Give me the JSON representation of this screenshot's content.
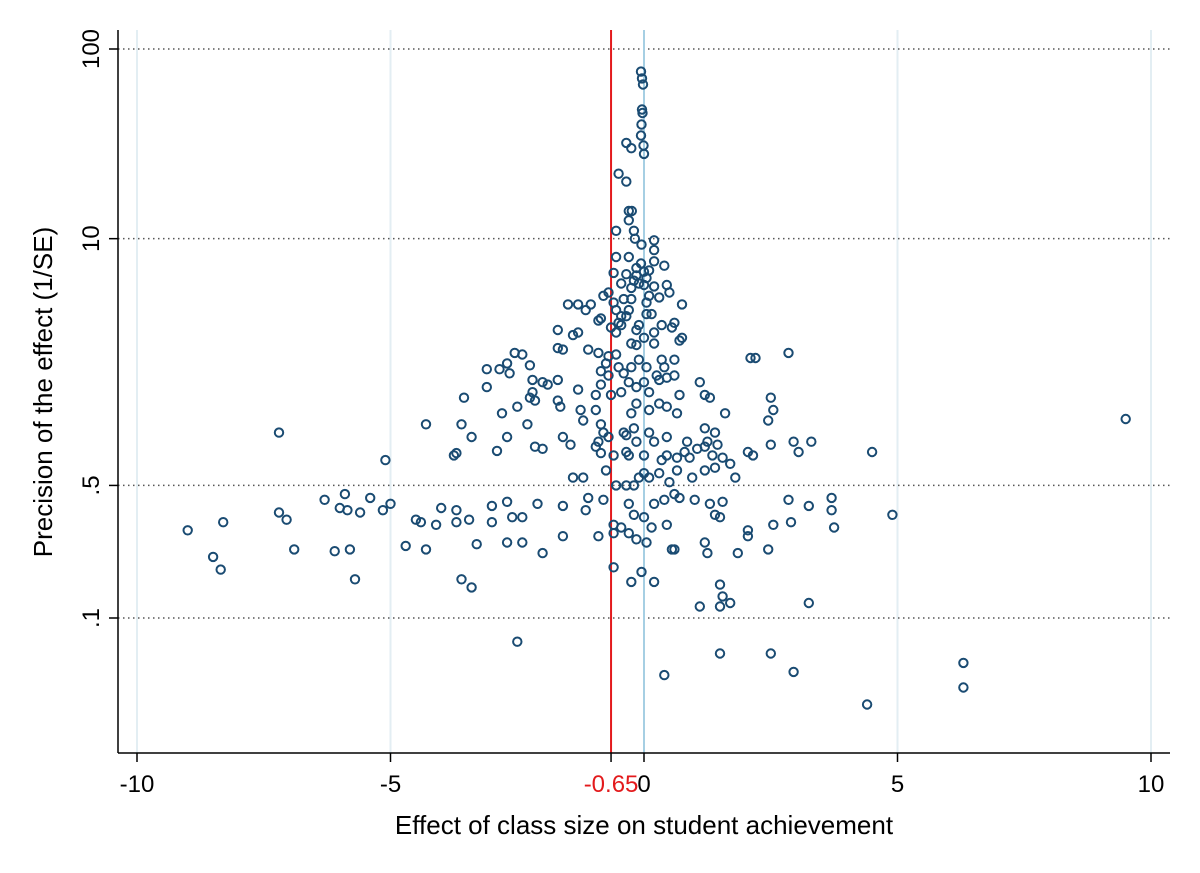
{
  "chart_data": {
    "type": "scatter",
    "xlabel": "Effect of class size on student achievement",
    "ylabel": "Precision of the effect (1/SE)",
    "xlim": [
      -10,
      10
    ],
    "x_ticks": [
      -10,
      -5,
      0,
      5,
      10
    ],
    "y_scale": "log",
    "ylim": [
      0.032,
      100
    ],
    "y_ticks": [
      {
        "value": 0.1,
        "label": ".1"
      },
      {
        "value": 0.5,
        "label": ".5"
      },
      {
        "value": 10,
        "label": "10"
      },
      {
        "value": 100,
        "label": "100"
      }
    ],
    "grid": {
      "horizontal": "dotted",
      "vertical": "light-blue"
    },
    "reference_lines": [
      {
        "x": -0.65,
        "label": "-0.65",
        "color": "#e31a1c"
      },
      {
        "x": 0,
        "color": "#a6cfe3"
      }
    ],
    "marker_color": "#1a4b72",
    "points": [
      [
        -0.06,
        76
      ],
      [
        -0.04,
        70
      ],
      [
        -0.02,
        65
      ],
      [
        -0.04,
        48
      ],
      [
        -0.03,
        46
      ],
      [
        -0.05,
        40
      ],
      [
        -0.06,
        35
      ],
      [
        -0.35,
        32
      ],
      [
        -0.25,
        30
      ],
      [
        -0.01,
        31
      ],
      [
        0.0,
        28
      ],
      [
        -0.5,
        22
      ],
      [
        -0.35,
        20
      ],
      [
        -0.3,
        14
      ],
      [
        -0.24,
        14
      ],
      [
        -0.3,
        12.5
      ],
      [
        -0.55,
        11
      ],
      [
        -0.2,
        11
      ],
      [
        -0.18,
        10
      ],
      [
        0.2,
        9.8
      ],
      [
        -0.05,
        9.3
      ],
      [
        0.2,
        8.7
      ],
      [
        -0.55,
        8
      ],
      [
        -0.3,
        8
      ],
      [
        0.2,
        7.6
      ],
      [
        0.4,
        7.2
      ],
      [
        -0.06,
        7.4
      ],
      [
        -0.15,
        7.0
      ],
      [
        0.0,
        6.7
      ],
      [
        0.1,
        6.8
      ],
      [
        -0.6,
        6.6
      ],
      [
        -0.35,
        6.5
      ],
      [
        -0.15,
        6.4
      ],
      [
        0.05,
        6.2
      ],
      [
        -0.2,
        6.0
      ],
      [
        -0.45,
        5.8
      ],
      [
        0.45,
        5.7
      ],
      [
        -0.1,
        5.8
      ],
      [
        0.0,
        5.7
      ],
      [
        0.2,
        5.6
      ],
      [
        -0.25,
        5.5
      ],
      [
        0.5,
        5.2
      ],
      [
        -0.7,
        5.2
      ],
      [
        -0.8,
        5.0
      ],
      [
        0.1,
        5.0
      ],
      [
        0.3,
        4.9
      ],
      [
        -0.25,
        4.8
      ],
      [
        -0.4,
        4.8
      ],
      [
        -0.6,
        4.6
      ],
      [
        0.05,
        4.6
      ],
      [
        0.75,
        4.5
      ],
      [
        -1.05,
        4.5
      ],
      [
        -1.5,
        4.5
      ],
      [
        -1.3,
        4.5
      ],
      [
        -1.15,
        4.2
      ],
      [
        -0.55,
        4.2
      ],
      [
        -0.3,
        4.2
      ],
      [
        0.05,
        4.0
      ],
      [
        0.15,
        4.0
      ],
      [
        -0.45,
        3.9
      ],
      [
        -0.35,
        3.9
      ],
      [
        -0.85,
        3.8
      ],
      [
        -0.9,
        3.7
      ],
      [
        -0.5,
        3.6
      ],
      [
        0.6,
        3.6
      ],
      [
        -0.45,
        3.5
      ],
      [
        -0.1,
        3.5
      ],
      [
        0.55,
        3.4
      ],
      [
        0.35,
        3.5
      ],
      [
        -1.7,
        3.3
      ],
      [
        -1.3,
        3.2
      ],
      [
        -0.55,
        3.2
      ],
      [
        -0.65,
        3.4
      ],
      [
        -0.15,
        3.3
      ],
      [
        0.2,
        3.2
      ],
      [
        -1.4,
        3.1
      ],
      [
        0.0,
        3.0
      ],
      [
        0.75,
        3.0
      ],
      [
        0.7,
        2.9
      ],
      [
        0.2,
        2.8
      ],
      [
        -0.25,
        2.8
      ],
      [
        -0.15,
        2.75
      ],
      [
        -1.7,
        2.65
      ],
      [
        -1.6,
        2.6
      ],
      [
        -2.55,
        2.5
      ],
      [
        -2.4,
        2.45
      ],
      [
        -1.1,
        2.6
      ],
      [
        -0.9,
        2.5
      ],
      [
        -0.55,
        2.45
      ],
      [
        -0.7,
        2.4
      ],
      [
        2.85,
        2.5
      ],
      [
        2.2,
        2.35
      ],
      [
        2.1,
        2.35
      ],
      [
        -0.1,
        2.3
      ],
      [
        0.35,
        2.3
      ],
      [
        0.6,
        2.3
      ],
      [
        -2.7,
        2.2
      ],
      [
        -2.25,
        2.15
      ],
      [
        -0.75,
        2.2
      ],
      [
        -0.5,
        2.1
      ],
      [
        -0.25,
        2.1
      ],
      [
        0.05,
        2.1
      ],
      [
        0.4,
        2.1
      ],
      [
        -3.1,
        2.05
      ],
      [
        -2.85,
        2.05
      ],
      [
        -2.65,
        1.95
      ],
      [
        -0.85,
        2.0
      ],
      [
        -0.7,
        1.9
      ],
      [
        -0.4,
        1.95
      ],
      [
        0.25,
        1.9
      ],
      [
        0.45,
        1.85
      ],
      [
        0.6,
        1.9
      ],
      [
        -2.2,
        1.8
      ],
      [
        -2.0,
        1.75
      ],
      [
        -1.7,
        1.8
      ],
      [
        -1.9,
        1.7
      ],
      [
        -0.85,
        1.7
      ],
      [
        -0.3,
        1.75
      ],
      [
        -0.15,
        1.65
      ],
      [
        0.0,
        1.75
      ],
      [
        0.3,
        1.8
      ],
      [
        1.1,
        1.75
      ],
      [
        -3.1,
        1.65
      ],
      [
        -2.2,
        1.55
      ],
      [
        -1.3,
        1.6
      ],
      [
        -0.95,
        1.5
      ],
      [
        -0.65,
        1.5
      ],
      [
        -0.45,
        1.55
      ],
      [
        0.1,
        1.55
      ],
      [
        0.7,
        1.5
      ],
      [
        1.3,
        1.45
      ],
      [
        1.2,
        1.5
      ],
      [
        2.5,
        1.45
      ],
      [
        -3.55,
        1.45
      ],
      [
        -2.25,
        1.45
      ],
      [
        -2.15,
        1.4
      ],
      [
        -1.7,
        1.4
      ],
      [
        -2.5,
        1.3
      ],
      [
        -1.65,
        1.3
      ],
      [
        -0.15,
        1.35
      ],
      [
        0.3,
        1.35
      ],
      [
        0.45,
        1.3
      ],
      [
        -1.25,
        1.25
      ],
      [
        -0.95,
        1.25
      ],
      [
        -2.8,
        1.2
      ],
      [
        -0.25,
        1.2
      ],
      [
        0.1,
        1.25
      ],
      [
        0.65,
        1.2
      ],
      [
        1.6,
        1.2
      ],
      [
        2.55,
        1.25
      ],
      [
        2.45,
        1.1
      ],
      [
        -7.2,
        0.95
      ],
      [
        -4.3,
        1.05
      ],
      [
        -3.6,
        1.05
      ],
      [
        -2.3,
        1.05
      ],
      [
        -1.2,
        1.1
      ],
      [
        -0.2,
        1.0
      ],
      [
        -0.85,
        1.05
      ],
      [
        1.2,
        1.0
      ],
      [
        1.4,
        0.95
      ],
      [
        -3.4,
        0.9
      ],
      [
        -2.7,
        0.9
      ],
      [
        -1.6,
        0.9
      ],
      [
        -0.9,
        0.85
      ],
      [
        -0.7,
        0.9
      ],
      [
        -0.8,
        0.95
      ],
      [
        -0.4,
        0.95
      ],
      [
        -0.35,
        0.92
      ],
      [
        -0.15,
        0.85
      ],
      [
        0.2,
        0.85
      ],
      [
        0.1,
        0.95
      ],
      [
        0.45,
        0.9
      ],
      [
        0.85,
        0.85
      ],
      [
        1.25,
        0.85
      ],
      [
        1.45,
        0.82
      ],
      [
        2.5,
        0.82
      ],
      [
        2.95,
        0.85
      ],
      [
        3.3,
        0.85
      ],
      [
        -5.1,
        0.68
      ],
      [
        -3.75,
        0.72
      ],
      [
        -3.7,
        0.74
      ],
      [
        -2.9,
        0.76
      ],
      [
        -2.15,
        0.8
      ],
      [
        -2.0,
        0.78
      ],
      [
        -1.45,
        0.82
      ],
      [
        -0.6,
        0.72
      ],
      [
        -0.85,
        0.74
      ],
      [
        -0.95,
        0.8
      ],
      [
        -0.35,
        0.75
      ],
      [
        -0.3,
        0.72
      ],
      [
        0.0,
        0.72
      ],
      [
        0.35,
        0.68
      ],
      [
        0.45,
        0.72
      ],
      [
        0.65,
        0.7
      ],
      [
        0.8,
        0.75
      ],
      [
        0.9,
        0.7
      ],
      [
        1.05,
        0.78
      ],
      [
        1.2,
        0.8
      ],
      [
        1.35,
        0.72
      ],
      [
        1.55,
        0.7
      ],
      [
        1.7,
        0.65
      ],
      [
        2.05,
        0.75
      ],
      [
        2.15,
        0.72
      ],
      [
        3.05,
        0.75
      ],
      [
        4.5,
        0.75
      ],
      [
        9.5,
        1.12
      ],
      [
        -1.4,
        0.55
      ],
      [
        -1.2,
        0.55
      ],
      [
        -0.75,
        0.6
      ],
      [
        -0.55,
        0.5
      ],
      [
        -0.35,
        0.5
      ],
      [
        -0.2,
        0.5
      ],
      [
        -0.1,
        0.55
      ],
      [
        0.0,
        0.58
      ],
      [
        0.1,
        0.55
      ],
      [
        0.3,
        0.58
      ],
      [
        0.5,
        0.52
      ],
      [
        0.65,
        0.6
      ],
      [
        0.95,
        0.55
      ],
      [
        1.2,
        0.6
      ],
      [
        1.4,
        0.62
      ],
      [
        1.8,
        0.55
      ],
      [
        -6.3,
        0.42
      ],
      [
        -5.9,
        0.45
      ],
      [
        -5.4,
        0.43
      ],
      [
        -5.0,
        0.4
      ],
      [
        -6.0,
        0.38
      ],
      [
        -5.15,
        0.37
      ],
      [
        -4.0,
        0.38
      ],
      [
        -3.7,
        0.37
      ],
      [
        -3.0,
        0.39
      ],
      [
        -2.7,
        0.41
      ],
      [
        -2.1,
        0.4
      ],
      [
        -1.6,
        0.39
      ],
      [
        -1.1,
        0.43
      ],
      [
        -0.8,
        0.42
      ],
      [
        -0.3,
        0.4
      ],
      [
        0.2,
        0.4
      ],
      [
        0.4,
        0.42
      ],
      [
        0.6,
        0.45
      ],
      [
        0.7,
        0.43
      ],
      [
        1.0,
        0.42
      ],
      [
        1.3,
        0.4
      ],
      [
        1.55,
        0.41
      ],
      [
        2.85,
        0.42
      ],
      [
        3.25,
        0.39
      ],
      [
        3.7,
        0.43
      ],
      [
        3.7,
        0.37
      ],
      [
        4.9,
        0.35
      ],
      [
        -7.2,
        0.36
      ],
      [
        -7.05,
        0.33
      ],
      [
        -5.85,
        0.37
      ],
      [
        -5.6,
        0.36
      ],
      [
        -4.5,
        0.33
      ],
      [
        -4.4,
        0.32
      ],
      [
        -4.1,
        0.31
      ],
      [
        -3.7,
        0.32
      ],
      [
        -3.45,
        0.33
      ],
      [
        -3.0,
        0.32
      ],
      [
        -2.6,
        0.34
      ],
      [
        -2.4,
        0.34
      ],
      [
        -1.15,
        0.37
      ],
      [
        -0.6,
        0.31
      ],
      [
        -0.45,
        0.3
      ],
      [
        -0.2,
        0.35
      ],
      [
        0.0,
        0.34
      ],
      [
        0.45,
        0.31
      ],
      [
        1.4,
        0.35
      ],
      [
        1.5,
        0.34
      ],
      [
        2.55,
        0.31
      ],
      [
        2.9,
        0.32
      ],
      [
        -9.0,
        0.29
      ],
      [
        -8.3,
        0.32
      ],
      [
        -1.6,
        0.27
      ],
      [
        -0.9,
        0.27
      ],
      [
        -0.6,
        0.28
      ],
      [
        -0.3,
        0.28
      ],
      [
        -0.15,
        0.26
      ],
      [
        0.05,
        0.25
      ],
      [
        0.15,
        0.3
      ],
      [
        2.05,
        0.29
      ],
      [
        2.05,
        0.27
      ],
      [
        3.75,
        0.3
      ],
      [
        -6.9,
        0.23
      ],
      [
        -4.7,
        0.24
      ],
      [
        -4.3,
        0.23
      ],
      [
        -3.3,
        0.245
      ],
      [
        -2.7,
        0.25
      ],
      [
        -2.4,
        0.25
      ],
      [
        -2.0,
        0.22
      ],
      [
        -6.1,
        0.225
      ],
      [
        -5.8,
        0.23
      ],
      [
        0.55,
        0.23
      ],
      [
        0.6,
        0.23
      ],
      [
        1.2,
        0.25
      ],
      [
        1.25,
        0.22
      ],
      [
        1.85,
        0.22
      ],
      [
        2.45,
        0.23
      ],
      [
        -8.5,
        0.21
      ],
      [
        -8.35,
        0.18
      ],
      [
        -5.7,
        0.16
      ],
      [
        -3.6,
        0.16
      ],
      [
        -3.4,
        0.145
      ],
      [
        -0.6,
        0.185
      ],
      [
        -0.25,
        0.155
      ],
      [
        -0.05,
        0.175
      ],
      [
        0.2,
        0.155
      ],
      [
        1.5,
        0.15
      ],
      [
        1.55,
        0.13
      ],
      [
        1.7,
        0.12
      ],
      [
        1.1,
        0.115
      ],
      [
        1.5,
        0.115
      ],
      [
        3.25,
        0.12
      ],
      [
        -2.5,
        0.075
      ],
      [
        1.5,
        0.065
      ],
      [
        2.5,
        0.065
      ],
      [
        6.3,
        0.058
      ],
      [
        0.4,
        0.05
      ],
      [
        2.95,
        0.052
      ],
      [
        6.3,
        0.043
      ],
      [
        4.4,
        0.035
      ]
    ]
  }
}
